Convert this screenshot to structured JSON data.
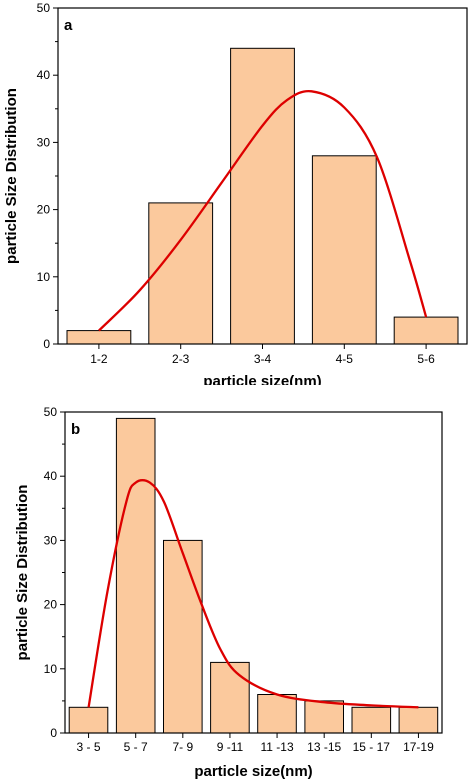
{
  "chart_data": [
    {
      "type": "bar",
      "panel_label": "a",
      "categories": [
        "1-2",
        "2-3",
        "3-4",
        "4-5",
        "5-6"
      ],
      "values": [
        2,
        21,
        44,
        28,
        4
      ],
      "fit_curve": {
        "x": [
          0,
          0.5,
          1,
          1.5,
          2,
          2.3,
          2.6,
          3,
          3.4,
          3.8,
          4
        ],
        "y": [
          2,
          8,
          15.5,
          24,
          32.5,
          36.3,
          37.6,
          35.2,
          27.8,
          12.5,
          4
        ]
      },
      "ylabel": "particle Size Distribution",
      "xlabel": "particle size(nm)",
      "ylim": [
        0,
        50
      ],
      "yticks": [
        0,
        10,
        20,
        30,
        40,
        50
      ],
      "bar_color": "#fbc99d",
      "curve_color": "#dd0000"
    },
    {
      "type": "bar",
      "panel_label": "b",
      "categories": [
        "3 - 5",
        "5 - 7",
        "7- 9",
        "9 -11",
        "11 -13",
        "13 -15",
        "15 - 17",
        "17-19"
      ],
      "values": [
        4,
        49,
        30,
        11,
        6,
        5,
        4,
        4
      ],
      "fit_curve": {
        "x": [
          0,
          0.4,
          0.8,
          1,
          1.3,
          1.6,
          2,
          2.4,
          2.8,
          3.2,
          4,
          5,
          6,
          7
        ],
        "y": [
          4,
          22,
          36,
          39,
          39,
          36,
          28,
          20,
          13,
          9,
          6,
          4.8,
          4.3,
          4
        ]
      },
      "ylabel": "particle Size Distribution",
      "xlabel": "particle size(nm)",
      "ylim": [
        0,
        50
      ],
      "yticks": [
        0,
        10,
        20,
        30,
        40,
        50
      ],
      "bar_color": "#fbc99d",
      "curve_color": "#dd0000"
    }
  ]
}
